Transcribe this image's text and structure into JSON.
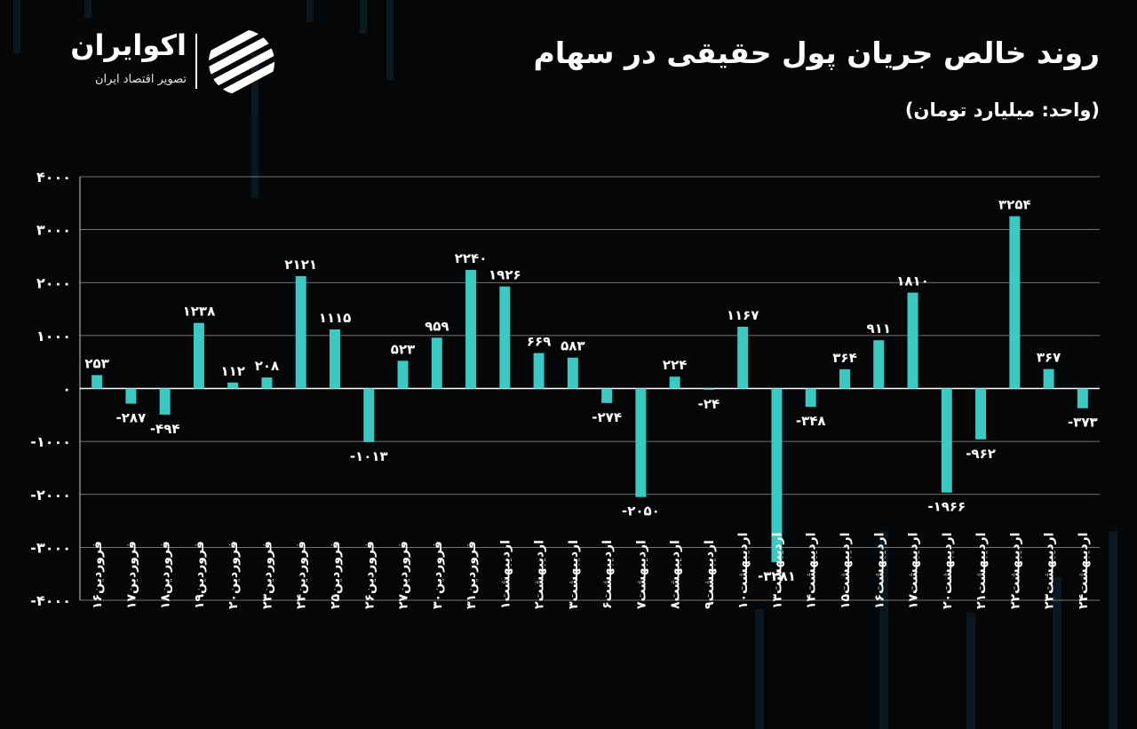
{
  "title": "روند خالص جریان پول حقیقی در سهام",
  "subtitle": "(واحد: میلیارد تومان)",
  "brand": {
    "name": "اکوایران",
    "tagline": "تصویر اقتصاد ایران",
    "logo_icon": "ekoiran-stripes-icon"
  },
  "colors": {
    "background": "#040608",
    "bar": "#3cc9c4",
    "grid": "#c8c8c8",
    "text": "#ffffff"
  },
  "chart_data": {
    "type": "bar",
    "title": "روند خالص جریان پول حقیقی در سهام",
    "xlabel": "",
    "ylabel": "(واحد: میلیارد تومان)",
    "ylim": [
      -4000,
      4000
    ],
    "yticks": [
      4000,
      3000,
      2000,
      1000,
      0,
      -1000,
      -2000,
      -3000,
      -4000
    ],
    "ytick_labels": [
      "۴۰۰۰",
      "۳۰۰۰",
      "۲۰۰۰",
      "۱۰۰۰",
      "۰",
      "-۱۰۰۰",
      "-۲۰۰۰",
      "-۳۰۰۰",
      "-۴۰۰۰"
    ],
    "grid": true,
    "categories": [
      "فروردین۱۶",
      "فروردین۱۷",
      "فروردین۱۸",
      "فروردین۱۹",
      "فروردین۲۰",
      "فروردین۲۳",
      "فروردین۲۴",
      "فروردین۲۵",
      "فروردین۲۶",
      "فروردین۲۷",
      "فروردین۳۰",
      "فروردین۳۱",
      "اردیبهشت۱",
      "اردیبهشت۲",
      "اردیبهشت۳",
      "اردیبهشت۶",
      "اردیبهشت۷",
      "اردیبهشت۸",
      "اردیبهشت۹",
      "اردیبهشت۱۰",
      "اردیبهشت۱۳",
      "اردیبهشت۱۴",
      "اردیبهشت۱۵",
      "اردیبهشت۱۶",
      "اردیبهشت۱۷",
      "اردیبهشت۲۰",
      "اردیبهشت۲۱",
      "اردیبهشت۲۲",
      "اردیبهشت۲۳",
      "اردیبهشت۲۴"
    ],
    "values": [
      253,
      -287,
      -494,
      1238,
      112,
      208,
      2121,
      1115,
      -1013,
      523,
      959,
      2240,
      1926,
      669,
      583,
      -274,
      -2050,
      224,
      -24,
      1167,
      -3281,
      -348,
      364,
      911,
      1810,
      -1966,
      -962,
      3254,
      367,
      -373
    ],
    "value_labels": [
      "۲۵۳",
      "-۲۸۷",
      "-۴۹۴",
      "۱۲۳۸",
      "۱۱۲",
      "۲۰۸",
      "۲۱۲۱",
      "۱۱۱۵",
      "-۱۰۱۳",
      "۵۲۳",
      "۹۵۹",
      "۲۲۴۰",
      "۱۹۲۶",
      "۶۶۹",
      "۵۸۳",
      "-۲۷۴",
      "-۲۰۵۰",
      "۲۲۴",
      "-۲۴",
      "۱۱۶۷",
      "-۳۲۸۱",
      "-۳۴۸",
      "۳۶۴",
      "۹۱۱",
      "۱۸۱۰",
      "-۱۹۶۶",
      "-۹۶۲",
      "۳۲۵۴",
      "۳۶۷",
      "-۳۷۳"
    ]
  }
}
